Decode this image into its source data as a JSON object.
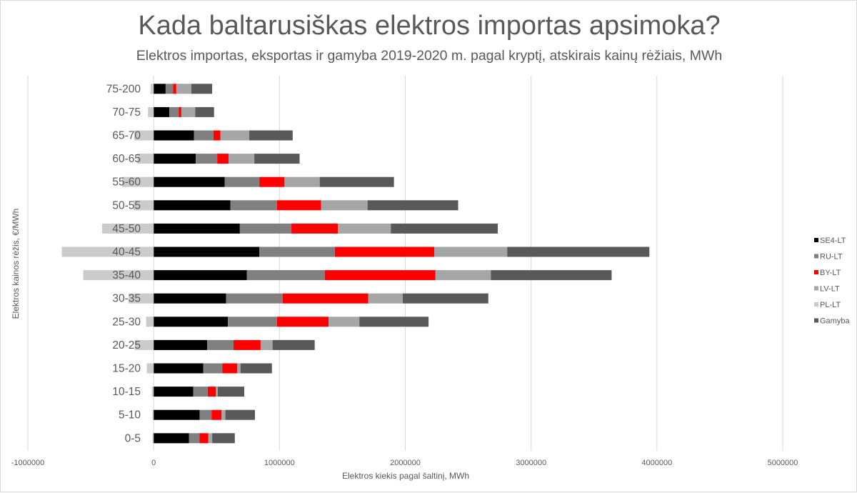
{
  "chart_data": {
    "type": "bar",
    "orientation": "horizontal",
    "stacked": true,
    "title": "Kada baltarusiškas elektros importas apsimoka?",
    "subtitle": "Elektros importas, eksportas ir gamyba 2019-2020 m. pagal kryptį, atskirais kainų rėžiais, MWh",
    "xlabel": "Elektros kiekis pagal šaltinį, MWh",
    "ylabel": "Elektros kainos rėžis, €/MWh",
    "xlim": [
      -1000000,
      5000000
    ],
    "xticks": [
      -1000000,
      0,
      1000000,
      2000000,
      3000000,
      4000000,
      5000000
    ],
    "x_grid": true,
    "legend_position": "right",
    "categories": [
      "0-5",
      "5-10",
      "10-15",
      "15-20",
      "20-25",
      "25-30",
      "30-35",
      "35-40",
      "40-45",
      "45-50",
      "50-55",
      "55-60",
      "60-65",
      "65-70",
      "70-75",
      "75-200"
    ],
    "series": [
      {
        "name": "SE4-LT",
        "color": "#000000",
        "values": [
          280000,
          365000,
          315000,
          395000,
          425000,
          590000,
          575000,
          740000,
          840000,
          685000,
          610000,
          565000,
          335000,
          320000,
          125000,
          95000
        ]
      },
      {
        "name": "RU-LT",
        "color": "#808080",
        "values": [
          85000,
          95000,
          115000,
          150000,
          210000,
          390000,
          450000,
          620000,
          600000,
          410000,
          370000,
          275000,
          170000,
          155000,
          75000,
          60000
        ]
      },
      {
        "name": "BY-LT",
        "color": "#ff0000",
        "values": [
          70000,
          80000,
          65000,
          120000,
          215000,
          410000,
          680000,
          880000,
          790000,
          370000,
          350000,
          200000,
          90000,
          55000,
          20000,
          25000
        ]
      },
      {
        "name": "LV-LT",
        "color": "#a6a6a6",
        "values": [
          30000,
          30000,
          15000,
          25000,
          95000,
          245000,
          275000,
          440000,
          580000,
          420000,
          370000,
          280000,
          205000,
          230000,
          110000,
          120000
        ]
      },
      {
        "name": "PL-LT",
        "color": "#cbcbcb",
        "values": [
          -10000,
          -10000,
          -15000,
          -55000,
          -150000,
          -60000,
          -200000,
          -560000,
          -730000,
          -410000,
          -160000,
          -250000,
          -130000,
          -155000,
          -45000,
          -25000
        ]
      },
      {
        "name": "Gamyba",
        "color": "#595959",
        "values": [
          180000,
          235000,
          210000,
          250000,
          335000,
          550000,
          680000,
          960000,
          1130000,
          850000,
          720000,
          590000,
          360000,
          345000,
          150000,
          165000
        ]
      }
    ]
  }
}
